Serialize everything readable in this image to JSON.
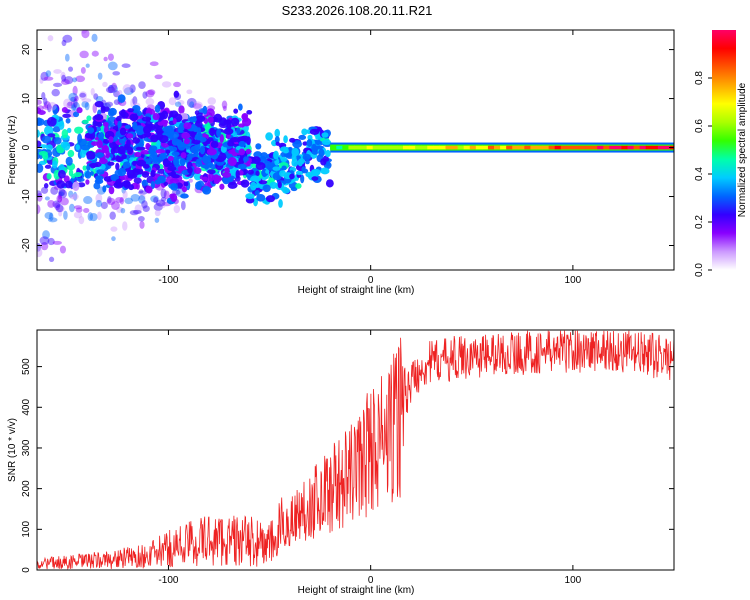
{
  "title": "S233.2026.108.20.11.R21",
  "chart_data": [
    {
      "type": "heatmap",
      "name": "spectrogram",
      "xlabel": "Height of straight line (km)",
      "ylabel": "Frequency (Hz)",
      "xlim": [
        -165,
        150
      ],
      "ylim": [
        -25,
        24
      ],
      "xticks": [
        -100,
        0,
        100
      ],
      "xtick_labels": [
        "-100",
        "0",
        "100"
      ],
      "yticks": [
        -20,
        -10,
        0,
        10,
        20
      ],
      "ytick_labels": [
        "-20",
        "-10",
        "0",
        "10",
        "20"
      ],
      "colorbar": {
        "label": "Normalized spectral amplitude",
        "range": [
          0,
          1
        ],
        "ticks": [
          0.0,
          0.2,
          0.4,
          0.6,
          0.8
        ],
        "tick_labels": [
          "0.0",
          "0.2",
          "0.4",
          "0.6",
          "0.8"
        ],
        "colors": [
          "#ffffff",
          "#cc99ff",
          "#8800ff",
          "#3300ff",
          "#0066ff",
          "#00ccff",
          "#00ffaa",
          "#33ff00",
          "#aaff00",
          "#ffff00",
          "#ffaa00",
          "#ff5500",
          "#ff0000",
          "#ff0066"
        ]
      },
      "features": {
        "scatter_region_x": [
          -165,
          -60
        ],
        "scatter_spread_hz": 22,
        "transition_x": [
          -60,
          -20
        ],
        "transition_offset_hz": -6,
        "carrier_line_x": [
          -20,
          150
        ],
        "carrier_freq_hz": 0
      }
    },
    {
      "type": "line",
      "name": "snr",
      "xlabel": "Height of straight line (km)",
      "ylabel": "SNR (10 * v/v)",
      "xlim": [
        -165,
        150
      ],
      "ylim": [
        0,
        590
      ],
      "xticks": [
        -100,
        0,
        100
      ],
      "xtick_labels": [
        "-100",
        "0",
        "100"
      ],
      "yticks": [
        0,
        100,
        200,
        300,
        400,
        500
      ],
      "ytick_labels": [
        "0",
        "100",
        "200",
        "300",
        "400",
        "500"
      ],
      "color": "#ee2222",
      "baseline_profile": {
        "x": [
          -165,
          -130,
          -110,
          -95,
          -80,
          -60,
          -50,
          -40,
          -30,
          -20,
          -10,
          0,
          10,
          20,
          25,
          30,
          40,
          60,
          80,
          100,
          120,
          150
        ],
        "y": [
          15,
          25,
          35,
          60,
          75,
          70,
          60,
          120,
          160,
          200,
          230,
          300,
          330,
          460,
          500,
          510,
          520,
          530,
          535,
          540,
          540,
          520
        ]
      }
    }
  ]
}
